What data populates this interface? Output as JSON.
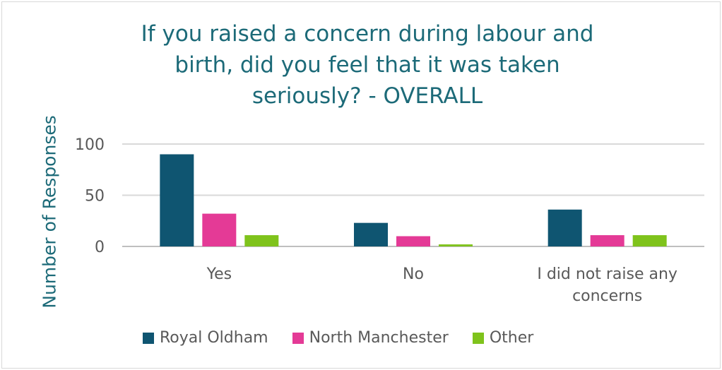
{
  "chart_data": {
    "type": "bar",
    "title_lines": [
      "If you raised a concern during labour and",
      "birth, did you feel that it was taken",
      "seriously? - OVERALL"
    ],
    "xlabel": "",
    "ylabel": "Number of Responses",
    "ylim": [
      0,
      100
    ],
    "yticks": [
      "0",
      "50",
      "100"
    ],
    "categories": [
      {
        "lines": [
          "Yes"
        ]
      },
      {
        "lines": [
          "No"
        ]
      },
      {
        "lines": [
          "I did not raise any",
          "concerns"
        ]
      }
    ],
    "series": [
      {
        "name": "Royal Oldham",
        "color": "#0f5571",
        "values": [
          90,
          23,
          36
        ]
      },
      {
        "name": "North Manchester",
        "color": "#e43a96",
        "values": [
          32,
          10,
          11
        ]
      },
      {
        "name": "Other",
        "color": "#7fc31c",
        "values": [
          11,
          2,
          11
        ]
      }
    ],
    "grid": true,
    "legend_position": "bottom"
  }
}
